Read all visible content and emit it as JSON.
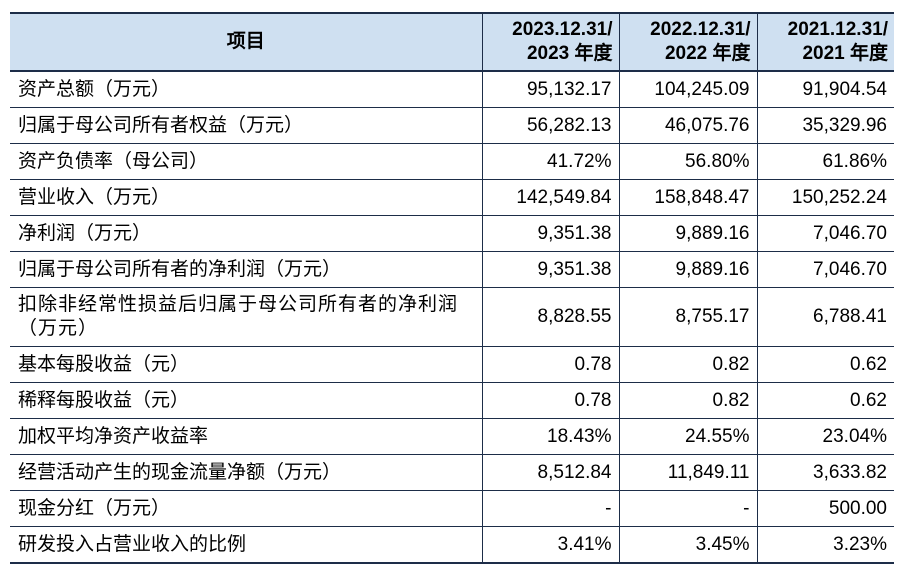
{
  "header": {
    "item": "项目",
    "periods": [
      {
        "line1": "2023.12.31/",
        "line2": "2023 年度"
      },
      {
        "line1": "2022.12.31/",
        "line2": "2022 年度"
      },
      {
        "line1": "2021.12.31/",
        "line2": "2021 年度"
      }
    ]
  },
  "rows": [
    {
      "label": "资产总额（万元）",
      "values": [
        "95,132.17",
        "104,245.09",
        "91,904.54"
      ]
    },
    {
      "label": "归属于母公司所有者权益（万元）",
      "values": [
        "56,282.13",
        "46,075.76",
        "35,329.96"
      ]
    },
    {
      "label": "资产负债率（母公司）",
      "values": [
        "41.72%",
        "56.80%",
        "61.86%"
      ]
    },
    {
      "label": "营业收入（万元）",
      "values": [
        "142,549.84",
        "158,848.47",
        "150,252.24"
      ]
    },
    {
      "label": "净利润（万元）",
      "values": [
        "9,351.38",
        "9,889.16",
        "7,046.70"
      ]
    },
    {
      "label": "归属于母公司所有者的净利润（万元）",
      "values": [
        "9,351.38",
        "9,889.16",
        "7,046.70"
      ]
    },
    {
      "label": "扣除非经常性损益后归属于母公司所有者的净利润（万元）",
      "values": [
        "8,828.55",
        "8,755.17",
        "6,788.41"
      ]
    },
    {
      "label": "基本每股收益（元）",
      "values": [
        "0.78",
        "0.82",
        "0.62"
      ]
    },
    {
      "label": "稀释每股收益（元）",
      "values": [
        "0.78",
        "0.82",
        "0.62"
      ]
    },
    {
      "label": "加权平均净资产收益率",
      "values": [
        "18.43%",
        "24.55%",
        "23.04%"
      ]
    },
    {
      "label": "经营活动产生的现金流量净额（万元）",
      "values": [
        "8,512.84",
        "11,849.11",
        "3,633.82"
      ]
    },
    {
      "label": "现金分红（万元）",
      "values": [
        "-",
        "-",
        "500.00"
      ]
    },
    {
      "label": "研发投入占营业收入的比例",
      "values": [
        "3.41%",
        "3.45%",
        "3.23%"
      ]
    }
  ]
}
